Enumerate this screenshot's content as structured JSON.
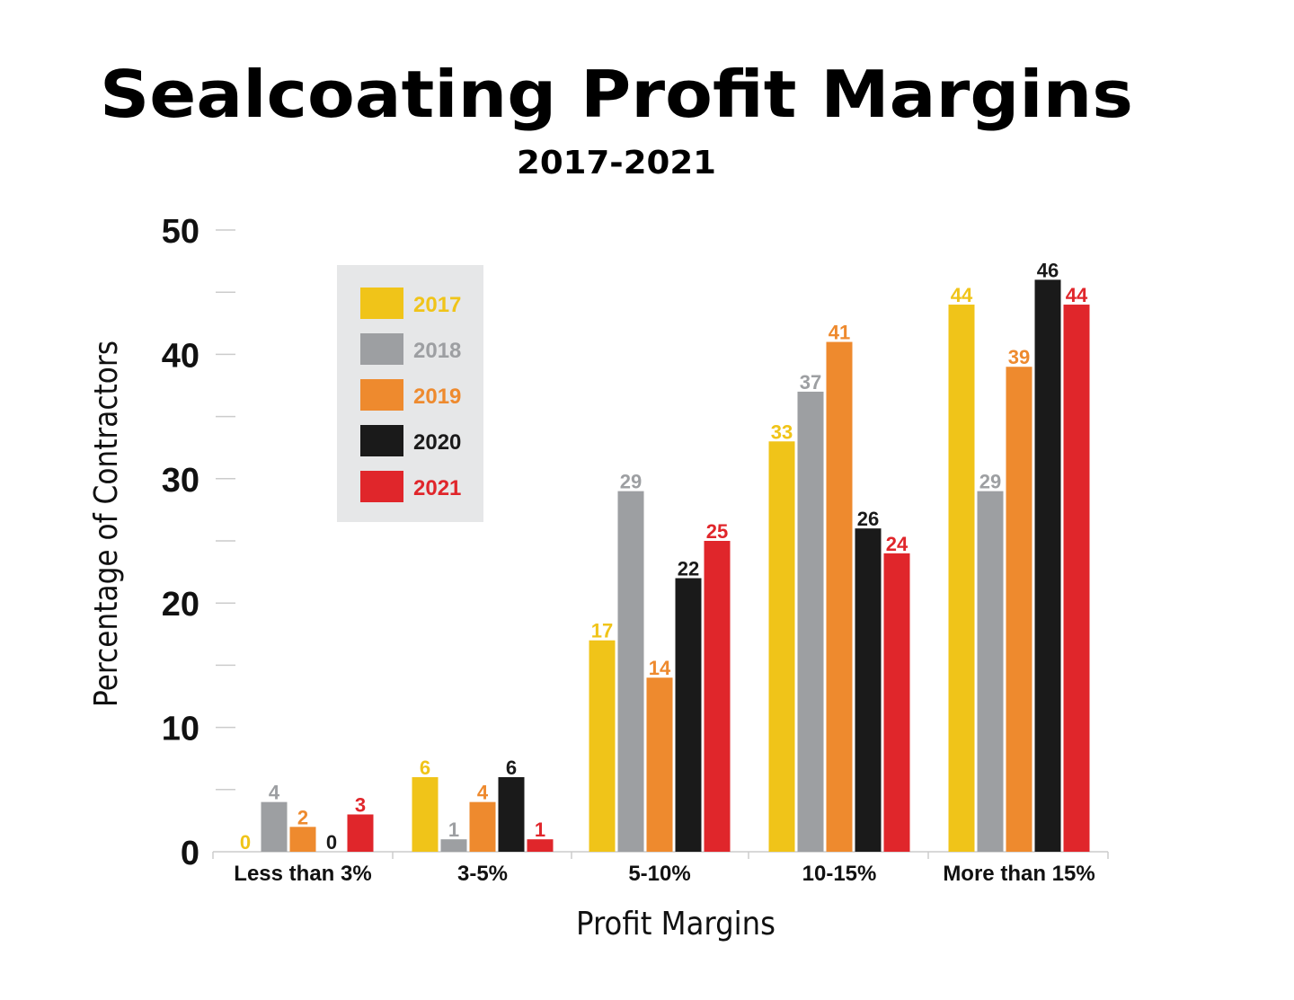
{
  "chart_data": {
    "type": "bar",
    "title": "Sealcoating Profit Margins",
    "subtitle": "2017-2021",
    "xlabel": "Profit Margins",
    "ylabel": "Percentage of Contractors",
    "ylim": [
      0,
      50
    ],
    "yticks": [
      0,
      10,
      20,
      30,
      40,
      50
    ],
    "grid": false,
    "legend_position": "top-left",
    "categories": [
      "Less than 3%",
      "3-5%",
      "5-10%",
      "10-15%",
      "More than 15%"
    ],
    "series": [
      {
        "name": "2017",
        "color": "#f0c419",
        "values": [
          0,
          6,
          17,
          33,
          44
        ]
      },
      {
        "name": "2018",
        "color": "#9d9fa2",
        "values": [
          4,
          1,
          29,
          37,
          29
        ]
      },
      {
        "name": "2019",
        "color": "#ee8a2e",
        "values": [
          2,
          4,
          14,
          41,
          39
        ]
      },
      {
        "name": "2020",
        "color": "#1a1a1a",
        "values": [
          0,
          6,
          22,
          26,
          46
        ]
      },
      {
        "name": "2021",
        "color": "#e0262b",
        "values": [
          3,
          1,
          25,
          24,
          44
        ]
      }
    ]
  },
  "colors": {
    "legend_background": "#e6e7e8",
    "axis": "#cccccc",
    "text": "#111111"
  }
}
